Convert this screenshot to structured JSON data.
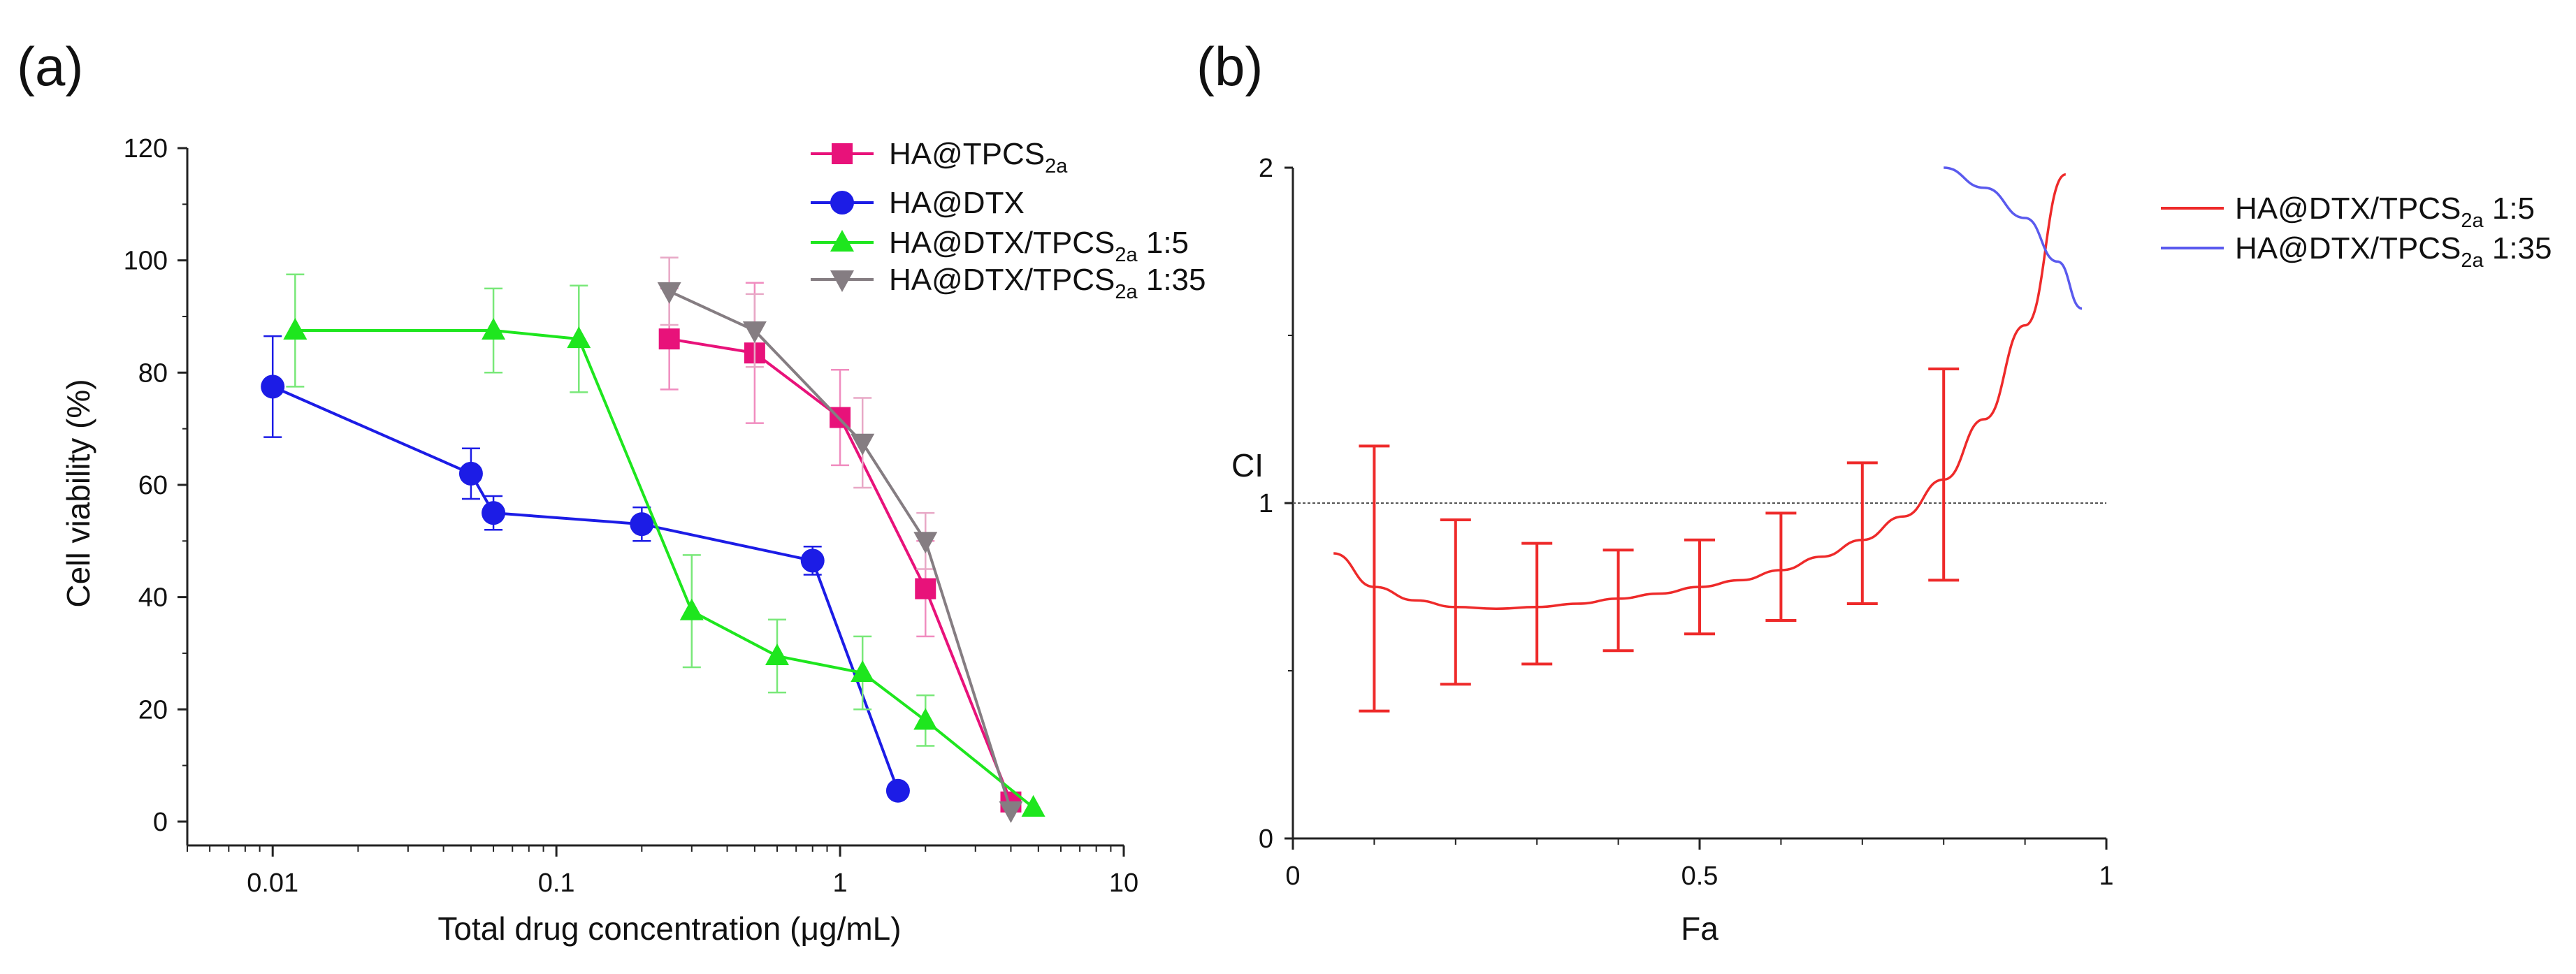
{
  "panels": {
    "a": {
      "letter": "(a)"
    },
    "b": {
      "letter": "(b)"
    }
  },
  "chart_data": [
    {
      "type": "line",
      "xlabel": "Total drug concentration (μg/mL)",
      "ylabel": "Cell viability (%)",
      "xscale": "log",
      "xlim": [
        0.005,
        10
      ],
      "ylim": [
        -3,
        120
      ],
      "x_ticks": [
        0.01,
        0.1,
        1,
        10
      ],
      "x_tick_labels": [
        "0.01",
        "0.1",
        "1",
        "10"
      ],
      "y_ticks": [
        0,
        20,
        40,
        60,
        80,
        100,
        120
      ],
      "y_tick_labels": [
        "0",
        "20",
        "40",
        "60",
        "80",
        "100",
        "120"
      ],
      "legend_position": "top-right",
      "series": [
        {
          "name": "HA@TPCS2a",
          "label_base": "HA@TPCS",
          "label_sub": "2a",
          "label_suffix": "",
          "color": "#e8127a",
          "error_color": "#f08cbf",
          "marker": "square",
          "x": [
            0.25,
            0.5,
            1,
            2,
            4
          ],
          "y": [
            86,
            83.5,
            72,
            41.5,
            3.5
          ],
          "err": [
            9,
            12.5,
            8.5,
            8.5,
            0
          ]
        },
        {
          "name": "HA@DTX",
          "label_base": "HA@DTX",
          "label_sub": "",
          "label_suffix": "",
          "color": "#1c1ce6",
          "error_color": "#1c1ce6",
          "marker": "circle",
          "x": [
            0.01,
            0.05,
            0.06,
            0.2,
            0.8,
            1.6
          ],
          "y": [
            77.5,
            62,
            55,
            53,
            46.5,
            5.5
          ],
          "err": [
            9,
            4.5,
            3,
            3,
            2.5,
            0
          ]
        },
        {
          "name": "HA@DTX/TPCS2a 1:5",
          "label_base": "HA@DTX/TPCS",
          "label_sub": "2a",
          "label_suffix": " 1:5",
          "color": "#1ee61e",
          "error_color": "#79e879",
          "marker": "triangle-up",
          "x": [
            0.012,
            0.06,
            0.12,
            0.3,
            0.6,
            1.2,
            2,
            4.8
          ],
          "y": [
            87.5,
            87.5,
            86,
            37.5,
            29.5,
            26.5,
            18,
            2.5
          ],
          "err": [
            10,
            7.5,
            9.5,
            10,
            6.5,
            6.5,
            4.5,
            0
          ]
        },
        {
          "name": "HA@DTX/TPCS2a 1:35",
          "label_base": "HA@DTX/TPCS",
          "label_sub": "2a",
          "label_suffix": " 1:35",
          "color": "#857d82",
          "error_color": "#e8a8c6",
          "marker": "triangle-down",
          "x": [
            0.25,
            0.5,
            1.2,
            2,
            4
          ],
          "y": [
            94.5,
            87.5,
            67.5,
            50,
            2
          ],
          "err": [
            6,
            6.5,
            8,
            5,
            0
          ]
        }
      ]
    },
    {
      "type": "line",
      "xlabel": "Fa",
      "ylabel": "CI",
      "xlim": [
        0,
        1
      ],
      "ylim": [
        0,
        2
      ],
      "x_ticks": [
        0,
        0.5,
        1
      ],
      "x_tick_labels": [
        "0",
        "0.5",
        "1"
      ],
      "x_minor_ticks": [
        0.1,
        0.2,
        0.3,
        0.4,
        0.6,
        0.7,
        0.8,
        0.9
      ],
      "y_ticks": [
        0,
        1,
        2
      ],
      "y_tick_labels": [
        "0",
        "1",
        "2"
      ],
      "y_minor_ticks": [
        0.5,
        1.5
      ],
      "reference_line": 1,
      "legend_position": "right",
      "series": [
        {
          "name": "HA@DTX/TPCS2a 1:5",
          "label_base": "HA@DTX/TPCS",
          "label_sub": "2a",
          "label_suffix": " 1:5",
          "color": "#ee2a2a",
          "x": [
            0.05,
            0.1,
            0.15,
            0.2,
            0.25,
            0.3,
            0.35,
            0.4,
            0.45,
            0.5,
            0.55,
            0.6,
            0.65,
            0.7,
            0.75,
            0.8,
            0.85,
            0.9,
            0.95
          ],
          "y": [
            0.85,
            0.75,
            0.71,
            0.69,
            0.685,
            0.69,
            0.7,
            0.715,
            0.73,
            0.75,
            0.77,
            0.8,
            0.84,
            0.89,
            0.96,
            1.07,
            1.25,
            1.53,
            1.98
          ],
          "error_bars": {
            "x": [
              0.1,
              0.2,
              0.3,
              0.4,
              0.5,
              0.6,
              0.7,
              0.8
            ],
            "low": [
              0.38,
              0.46,
              0.52,
              0.56,
              0.61,
              0.65,
              0.7,
              0.77
            ],
            "high": [
              1.17,
              0.95,
              0.88,
              0.86,
              0.89,
              0.97,
              1.12,
              1.4
            ]
          }
        },
        {
          "name": "HA@DTX/TPCS2a 1:35",
          "label_base": "HA@DTX/TPCS",
          "label_sub": "2a",
          "label_suffix": " 1:35",
          "color": "#5a5aee",
          "x": [
            0.8,
            0.85,
            0.9,
            0.94,
            0.97
          ],
          "y": [
            2.0,
            1.94,
            1.85,
            1.72,
            1.58
          ]
        }
      ]
    }
  ]
}
